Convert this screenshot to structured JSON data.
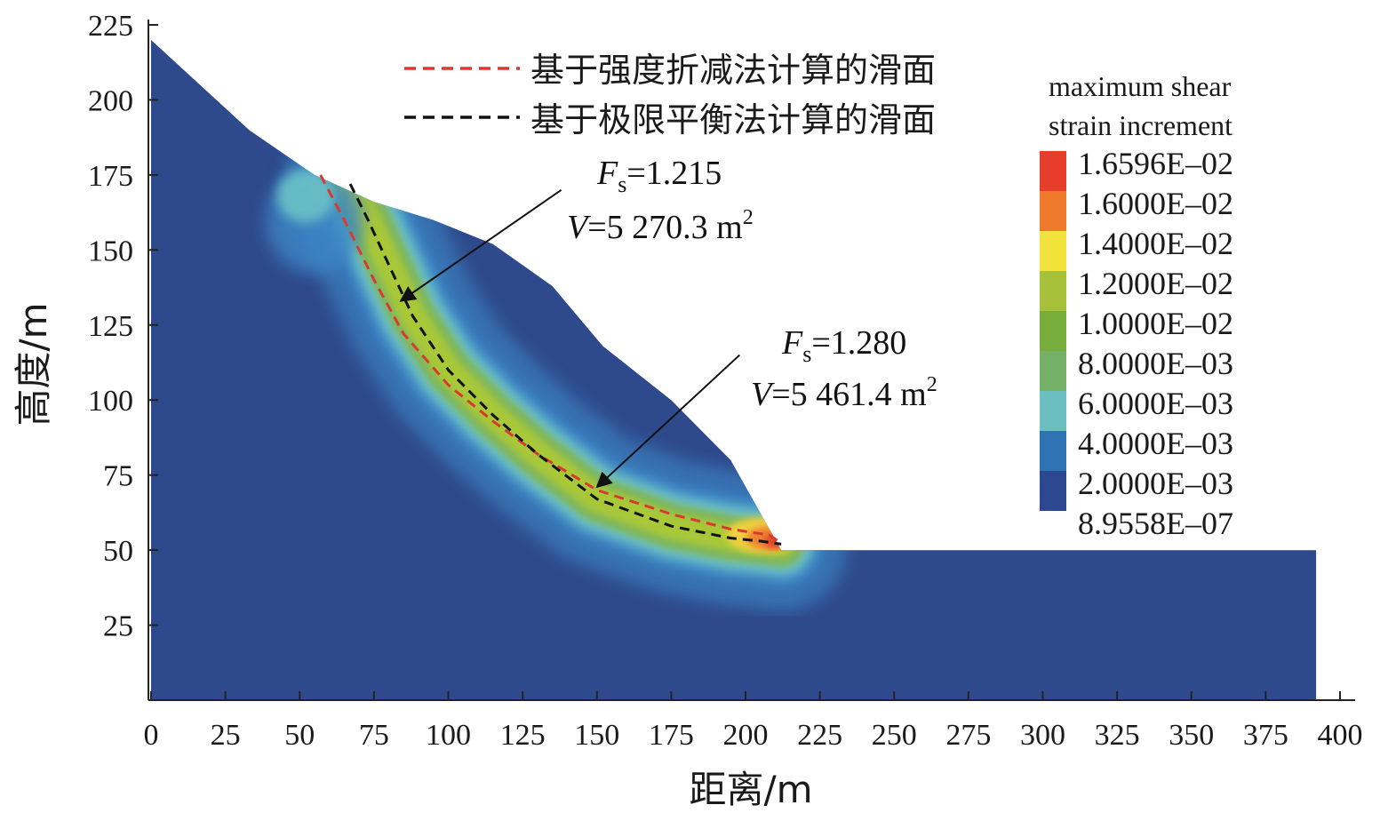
{
  "chart_data": {
    "type": "contour",
    "xlabel": "距离/m",
    "ylabel": "高度/m",
    "xlim": [
      0,
      400
    ],
    "ylim": [
      0,
      225
    ],
    "x_ticks": [
      0,
      25,
      50,
      75,
      100,
      125,
      150,
      175,
      200,
      225,
      250,
      275,
      300,
      325,
      350,
      375,
      400
    ],
    "y_ticks": [
      25,
      50,
      75,
      100,
      125,
      150,
      175,
      200,
      225
    ],
    "slope_profile": [
      [
        0,
        220
      ],
      [
        33,
        190
      ],
      [
        55,
        175
      ],
      [
        75,
        166
      ],
      [
        85,
        163
      ],
      [
        95,
        160
      ],
      [
        115,
        152
      ],
      [
        135,
        138
      ],
      [
        152,
        118
      ],
      [
        175,
        100
      ],
      [
        195,
        80
      ],
      [
        212,
        50
      ],
      [
        392,
        50
      ],
      [
        392,
        0
      ],
      [
        0,
        0
      ]
    ],
    "series": [
      {
        "name": "基于强度折减法计算的滑面",
        "color": "#d93a30",
        "x": [
          57,
          65,
          75,
          85,
          100,
          115,
          130,
          150,
          175,
          195,
          208,
          211
        ],
        "y": [
          175,
          160,
          140,
          122,
          105,
          93,
          82,
          70,
          62,
          57,
          55,
          53
        ]
      },
      {
        "name": "基于极限平衡法计算的滑面",
        "color": "#111111",
        "x": [
          67,
          73,
          80,
          88,
          100,
          115,
          130,
          150,
          175,
          195,
          205,
          212
        ],
        "y": [
          172,
          160,
          145,
          128,
          110,
          95,
          82,
          67,
          58,
          54,
          53,
          52
        ]
      }
    ],
    "annotations": [
      {
        "fs_symbol": "F",
        "fs_sub": "s",
        "fs_value": "=1.215",
        "v_symbol": "V",
        "v_value": "=5 270.3 m",
        "v_sup": "2",
        "arrow_from": [
          138,
          170
        ],
        "arrow_to": [
          84,
          133
        ]
      },
      {
        "fs_symbol": "F",
        "fs_sub": "s",
        "fs_value": "=1.280",
        "v_symbol": "V",
        "v_value": "=5 461.4 m",
        "v_sup": "2",
        "arrow_from": [
          198,
          115
        ],
        "arrow_to": [
          150,
          71
        ]
      }
    ],
    "colorbar": {
      "title_line1": "maximum shear",
      "title_line2": "strain increment",
      "labels": [
        "1.6596E–02",
        "1.6000E–02",
        "1.4000E–02",
        "1.2000E–02",
        "1.0000E–02",
        "8.0000E–03",
        "6.0000E–03",
        "4.0000E–03",
        "2.0000E–03",
        "8.9558E–07"
      ],
      "colors": [
        "#e63e2b",
        "#ef7a2b",
        "#f2e23c",
        "#a8c13a",
        "#77ad3a",
        "#74b068",
        "#6bbfc0",
        "#2f73b5",
        "#2c4890"
      ]
    },
    "palette": {
      "background_body": "#2e4a8c",
      "band_outer": "#3d86c6",
      "band_cyan": "#6cc2c6",
      "band_green": "#7fb65c",
      "band_core": "#a8c838",
      "hot_yellow": "#f0d040",
      "hot_orange": "#ef8030",
      "hot_red": "#e24328"
    }
  }
}
